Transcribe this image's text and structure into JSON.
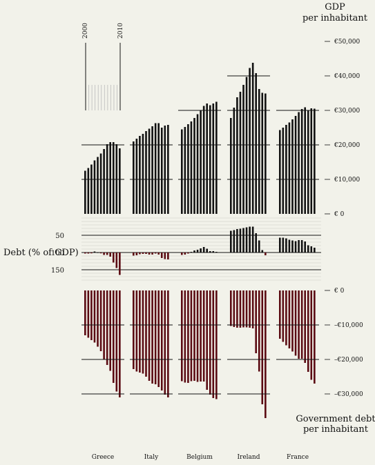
{
  "chart_data": {
    "type": "bar",
    "years": [
      2000,
      2001,
      2002,
      2003,
      2004,
      2005,
      2006,
      2007,
      2008,
      2009,
      2010,
      2011
    ],
    "year_labels": [
      "2000",
      "2010"
    ],
    "countries": [
      "Greece",
      "Italy",
      "Belgium",
      "Ireland",
      "France"
    ],
    "gdp": {
      "title": "GDP",
      "subtitle": "per inhabitant",
      "ticks": [
        "€ 0",
        "€10,000",
        "€20,000",
        "€30,000",
        "€40,000",
        "€50,000"
      ],
      "tick_values": [
        0,
        10000,
        20000,
        30000,
        40000,
        50000
      ],
      "ylim": [
        0,
        50000
      ],
      "series": [
        {
          "name": "Greece",
          "values": [
            12500,
            13300,
            14300,
            15500,
            16500,
            17500,
            18800,
            20200,
            20800,
            20800,
            20200,
            19000
          ]
        },
        {
          "name": "Italy",
          "values": [
            21000,
            21800,
            22600,
            23200,
            24000,
            24700,
            25400,
            26300,
            26300,
            25000,
            25600,
            25800
          ]
        },
        {
          "name": "Belgium",
          "values": [
            24500,
            25200,
            26000,
            26800,
            27800,
            28900,
            30000,
            31300,
            32000,
            31500,
            32000,
            32500
          ]
        },
        {
          "name": "Ireland",
          "values": [
            27800,
            30800,
            33800,
            35400,
            37400,
            39700,
            42300,
            43800,
            40800,
            36200,
            35100,
            34900
          ]
        },
        {
          "name": "France",
          "values": [
            24300,
            25000,
            25800,
            26500,
            27400,
            28400,
            29500,
            30400,
            30900,
            30100,
            30600,
            30500
          ]
        }
      ]
    },
    "debt_ratio": {
      "label": "Debt (% of GDP)",
      "ticks": [
        "50",
        "100",
        "150"
      ],
      "tick_values": [
        50,
        100,
        150
      ],
      "ylim": [
        0,
        180
      ],
      "series": [
        {
          "name": "Greece",
          "values": [
            103,
            103,
            101,
            97,
            99,
            101,
            107,
            107,
            112,
            129,
            145,
            165
          ]
        },
        {
          "name": "Italy",
          "values": [
            109,
            108,
            105,
            104,
            104,
            106,
            106,
            103,
            106,
            116,
            119,
            120
          ]
        },
        {
          "name": "Belgium",
          "values": [
            107,
            106,
            103,
            98,
            94,
            92,
            88,
            84,
            89,
            96,
            96,
            98
          ]
        },
        {
          "name": "Ireland",
          "values": [
            37,
            35,
            32,
            31,
            29,
            27,
            25,
            25,
            44,
            65,
            93,
            108
          ]
        },
        {
          "name": "France",
          "values": [
            57,
            57,
            59,
            63,
            65,
            67,
            64,
            64,
            68,
            79,
            82,
            86
          ]
        }
      ]
    },
    "debt": {
      "title": "Government debt",
      "subtitle": "per inhabitant",
      "ticks": [
        "€ 0",
        "–€10,000",
        "–€20,000",
        "–€30,000"
      ],
      "tick_values": [
        0,
        -10000,
        -20000,
        -30000
      ],
      "ylim": [
        -35000,
        0
      ],
      "series": [
        {
          "name": "Greece",
          "values": [
            -13000,
            -13700,
            -14400,
            -15100,
            -16300,
            -17600,
            -20100,
            -21600,
            -23300,
            -26800,
            -29300,
            -31000
          ]
        },
        {
          "name": "Italy",
          "values": [
            -22800,
            -23500,
            -23800,
            -24100,
            -25000,
            -26200,
            -27000,
            -27200,
            -28000,
            -29000,
            -30200,
            -31000
          ]
        },
        {
          "name": "Belgium",
          "values": [
            -26300,
            -26700,
            -26800,
            -26300,
            -26200,
            -26500,
            -26400,
            -26400,
            -28800,
            -30200,
            -31200,
            -31500
          ]
        },
        {
          "name": "Ireland",
          "values": [
            -10300,
            -10600,
            -10800,
            -10800,
            -10700,
            -10700,
            -10800,
            -11000,
            -18200,
            -23500,
            -33000,
            -37000
          ]
        },
        {
          "name": "France",
          "values": [
            -14000,
            -14900,
            -15900,
            -16800,
            -17700,
            -18900,
            -19800,
            -19800,
            -21000,
            -23600,
            -25900,
            -27000
          ]
        }
      ]
    }
  }
}
